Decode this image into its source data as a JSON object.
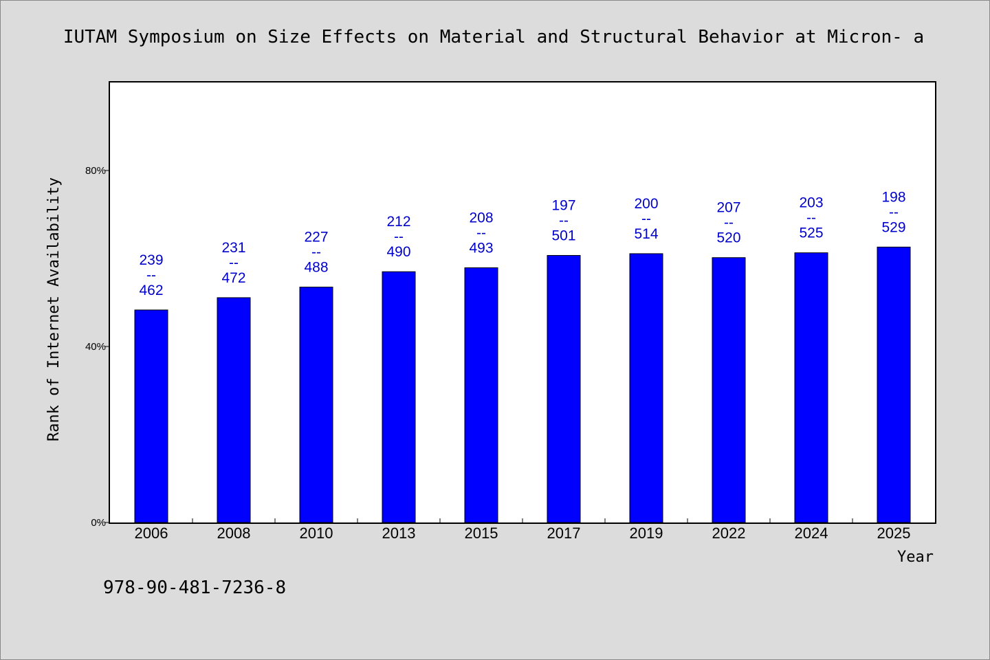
{
  "chart_data": {
    "type": "bar",
    "title": "IUTAM Symposium on Size Effects on Material and Structural Behavior at Micron- a",
    "xlabel": "Year",
    "ylabel": "Rank of Internet Availability",
    "categories": [
      "2006",
      "2008",
      "2010",
      "2013",
      "2015",
      "2017",
      "2019",
      "2022",
      "2024",
      "2025"
    ],
    "values": [
      48.3,
      51.1,
      53.5,
      57.0,
      57.9,
      60.7,
      61.1,
      60.2,
      61.3,
      62.6
    ],
    "labels": [
      [
        "239",
        "--",
        "462"
      ],
      [
        "231",
        "--",
        "472"
      ],
      [
        "227",
        "--",
        "488"
      ],
      [
        "212",
        "--",
        "490"
      ],
      [
        "208",
        "--",
        "493"
      ],
      [
        "197",
        "--",
        "501"
      ],
      [
        "200",
        "--",
        "514"
      ],
      [
        "207",
        "--",
        "520"
      ],
      [
        "203",
        "--",
        "525"
      ],
      [
        "198",
        "--",
        "529"
      ]
    ],
    "ylim": [
      0,
      100
    ],
    "yticks": [
      0,
      40,
      80
    ],
    "ytick_labels": [
      "0%",
      "40%",
      "80%"
    ],
    "bar_color": "#0000ff",
    "label_color": "#0000cc",
    "grid": false,
    "legend": "none"
  },
  "footer": {
    "isbn": "978-90-481-7236-8"
  }
}
